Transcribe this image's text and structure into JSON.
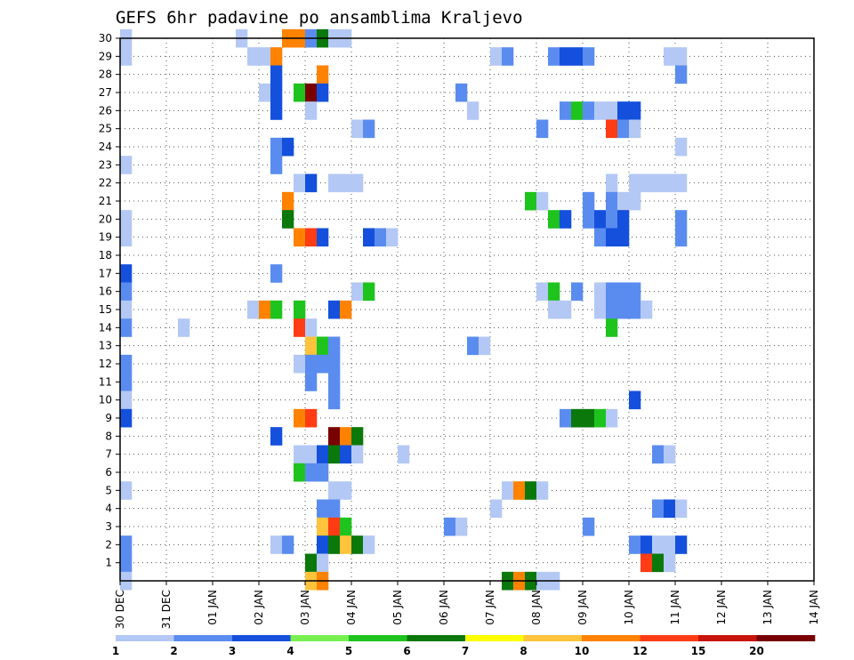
{
  "chart_data": {
    "type": "heatmap",
    "title": "GEFS 6hr padavine po ansamblima Kraljevo",
    "x_tick_labels": [
      "30 DEC",
      "31 DEC",
      "01 JAN",
      "02 JAN",
      "03 JAN",
      "04 JAN",
      "05 JAN",
      "06 JAN",
      "07 JAN",
      "08 JAN",
      "09 JAN",
      "10 JAN",
      "11 JAN",
      "12 JAN",
      "13 JAN",
      "14 JAN"
    ],
    "y_tick_labels": [
      "1",
      "2",
      "3",
      "4",
      "5",
      "6",
      "7",
      "8",
      "9",
      "10",
      "11",
      "12",
      "13",
      "14",
      "15",
      "16",
      "17",
      "18",
      "19",
      "20",
      "21",
      "22",
      "23",
      "24",
      "25",
      "26",
      "27",
      "28",
      "29",
      "30"
    ],
    "xlim": [
      0,
      15
    ],
    "ylim": [
      0,
      30
    ],
    "steps_per_day": 4,
    "grid": true,
    "colorbar": {
      "levels": [
        "1",
        "2",
        "3",
        "4",
        "5",
        "6",
        "7",
        "8",
        "10",
        "12",
        "15",
        "20"
      ],
      "colors": [
        "#b4c8f5",
        "#5a8cf0",
        "#1450dc",
        "#78f050",
        "#1ec31e",
        "#0a780a",
        "#ffff00",
        "#ffc33c",
        "#ff8200",
        "#ff3c14",
        "#c8140a",
        "#780000"
      ]
    },
    "cells": [
      [
        0,
        30,
        1
      ],
      [
        0,
        29,
        1
      ],
      [
        0,
        23,
        1
      ],
      [
        0,
        20,
        1
      ],
      [
        0,
        19,
        1
      ],
      [
        0,
        17,
        3
      ],
      [
        0,
        16,
        2
      ],
      [
        0,
        15,
        1
      ],
      [
        0,
        14,
        2
      ],
      [
        0,
        12,
        2
      ],
      [
        0,
        11,
        2
      ],
      [
        0,
        10,
        1
      ],
      [
        0,
        9,
        3
      ],
      [
        0,
        5,
        1
      ],
      [
        0,
        2,
        2
      ],
      [
        0,
        1,
        2
      ],
      [
        0,
        0,
        1
      ],
      [
        5,
        14,
        1
      ],
      [
        10,
        30,
        1
      ],
      [
        11,
        29,
        1
      ],
      [
        11,
        15,
        1
      ],
      [
        12,
        29,
        1
      ],
      [
        12,
        27,
        1
      ],
      [
        12,
        15,
        10
      ],
      [
        13,
        29,
        10
      ],
      [
        13,
        28,
        3
      ],
      [
        13,
        27,
        3
      ],
      [
        13,
        26,
        3
      ],
      [
        13,
        24,
        2
      ],
      [
        13,
        23,
        2
      ],
      [
        13,
        17,
        2
      ],
      [
        13,
        15,
        5
      ],
      [
        13,
        8,
        3
      ],
      [
        13,
        2,
        1
      ],
      [
        14,
        30,
        10
      ],
      [
        14,
        24,
        3
      ],
      [
        14,
        21,
        10
      ],
      [
        14,
        20,
        6
      ],
      [
        14,
        2,
        2
      ],
      [
        15,
        30,
        10
      ],
      [
        15,
        27,
        5
      ],
      [
        15,
        22,
        1
      ],
      [
        15,
        19,
        10
      ],
      [
        15,
        15,
        5
      ],
      [
        15,
        14,
        12
      ],
      [
        15,
        12,
        1
      ],
      [
        15,
        9,
        10
      ],
      [
        15,
        7,
        1
      ],
      [
        15,
        6,
        5
      ],
      [
        16,
        30,
        2
      ],
      [
        16,
        27,
        20
      ],
      [
        16,
        26,
        1
      ],
      [
        16,
        22,
        3
      ],
      [
        16,
        19,
        12
      ],
      [
        16,
        14,
        1
      ],
      [
        16,
        13,
        8
      ],
      [
        16,
        12,
        2
      ],
      [
        16,
        11,
        2
      ],
      [
        16,
        9,
        12
      ],
      [
        16,
        7,
        1
      ],
      [
        16,
        6,
        2
      ],
      [
        16,
        1,
        6
      ],
      [
        16,
        0,
        8
      ],
      [
        17,
        30,
        6
      ],
      [
        17,
        28,
        10
      ],
      [
        17,
        27,
        3
      ],
      [
        17,
        19,
        3
      ],
      [
        17,
        13,
        5
      ],
      [
        17,
        12,
        2
      ],
      [
        17,
        7,
        3
      ],
      [
        17,
        6,
        2
      ],
      [
        17,
        4,
        2
      ],
      [
        17,
        3,
        8
      ],
      [
        17,
        2,
        3
      ],
      [
        17,
        1,
        1
      ],
      [
        17,
        0,
        10
      ],
      [
        18,
        30,
        1
      ],
      [
        18,
        22,
        1
      ],
      [
        18,
        15,
        3
      ],
      [
        18,
        13,
        2
      ],
      [
        18,
        12,
        2
      ],
      [
        18,
        11,
        2
      ],
      [
        18,
        10,
        2
      ],
      [
        18,
        8,
        20
      ],
      [
        18,
        7,
        6
      ],
      [
        18,
        5,
        1
      ],
      [
        18,
        4,
        2
      ],
      [
        18,
        3,
        12
      ],
      [
        18,
        2,
        6
      ],
      [
        19,
        30,
        1
      ],
      [
        19,
        22,
        1
      ],
      [
        19,
        15,
        10
      ],
      [
        19,
        8,
        10
      ],
      [
        19,
        7,
        3
      ],
      [
        19,
        5,
        1
      ],
      [
        19,
        3,
        5
      ],
      [
        19,
        2,
        8
      ],
      [
        20,
        22,
        1
      ],
      [
        20,
        25,
        1
      ],
      [
        20,
        16,
        1
      ],
      [
        20,
        8,
        6
      ],
      [
        20,
        7,
        1
      ],
      [
        20,
        2,
        6
      ],
      [
        21,
        25,
        2
      ],
      [
        21,
        19,
        3
      ],
      [
        21,
        16,
        5
      ],
      [
        21,
        2,
        1
      ],
      [
        22,
        19,
        2
      ],
      [
        23,
        19,
        1
      ],
      [
        24,
        7,
        1
      ],
      [
        28,
        3,
        2
      ],
      [
        29,
        27,
        2
      ],
      [
        29,
        3,
        1
      ],
      [
        30,
        26,
        1
      ],
      [
        30,
        13,
        2
      ],
      [
        31,
        13,
        1
      ],
      [
        32,
        29,
        1
      ],
      [
        32,
        4,
        1
      ],
      [
        33,
        29,
        2
      ],
      [
        33,
        5,
        1
      ],
      [
        33,
        0,
        6
      ],
      [
        34,
        5,
        10
      ],
      [
        34,
        0,
        10
      ],
      [
        35,
        21,
        5
      ],
      [
        35,
        5,
        6
      ],
      [
        35,
        0,
        6
      ],
      [
        36,
        25,
        2
      ],
      [
        36,
        16,
        1
      ],
      [
        36,
        21,
        1
      ],
      [
        36,
        5,
        1
      ],
      [
        36,
        0,
        1
      ],
      [
        37,
        29,
        2
      ],
      [
        37,
        20,
        5
      ],
      [
        37,
        16,
        5
      ],
      [
        37,
        15,
        1
      ],
      [
        37,
        0,
        1
      ],
      [
        38,
        29,
        3
      ],
      [
        38,
        26,
        2
      ],
      [
        38,
        20,
        3
      ],
      [
        38,
        15,
        1
      ],
      [
        38,
        9,
        2
      ],
      [
        39,
        29,
        3
      ],
      [
        39,
        26,
        5
      ],
      [
        39,
        16,
        2
      ],
      [
        39,
        9,
        6
      ],
      [
        40,
        29,
        2
      ],
      [
        40,
        26,
        2
      ],
      [
        40,
        20,
        2
      ],
      [
        40,
        21,
        2
      ],
      [
        40,
        9,
        6
      ],
      [
        40,
        3,
        2
      ],
      [
        41,
        26,
        1
      ],
      [
        41,
        20,
        3
      ],
      [
        41,
        19,
        2
      ],
      [
        41,
        16,
        1
      ],
      [
        41,
        15,
        1
      ],
      [
        41,
        9,
        5
      ],
      [
        42,
        26,
        1
      ],
      [
        42,
        25,
        12
      ],
      [
        42,
        22,
        1
      ],
      [
        42,
        21,
        2
      ],
      [
        42,
        20,
        2
      ],
      [
        42,
        19,
        3
      ],
      [
        42,
        16,
        2
      ],
      [
        42,
        15,
        2
      ],
      [
        42,
        14,
        5
      ],
      [
        42,
        9,
        1
      ],
      [
        43,
        26,
        3
      ],
      [
        43,
        25,
        2
      ],
      [
        43,
        21,
        1
      ],
      [
        43,
        20,
        3
      ],
      [
        43,
        19,
        3
      ],
      [
        43,
        16,
        2
      ],
      [
        43,
        15,
        2
      ],
      [
        44,
        26,
        3
      ],
      [
        44,
        25,
        1
      ],
      [
        44,
        22,
        1
      ],
      [
        44,
        21,
        1
      ],
      [
        44,
        16,
        2
      ],
      [
        44,
        15,
        2
      ],
      [
        44,
        10,
        3
      ],
      [
        44,
        2,
        2
      ],
      [
        45,
        22,
        1
      ],
      [
        45,
        15,
        1
      ],
      [
        45,
        2,
        3
      ],
      [
        45,
        1,
        12
      ],
      [
        46,
        22,
        1
      ],
      [
        46,
        7,
        2
      ],
      [
        46,
        4,
        2
      ],
      [
        46,
        2,
        1
      ],
      [
        46,
        1,
        6
      ],
      [
        47,
        29,
        1
      ],
      [
        47,
        22,
        1
      ],
      [
        47,
        7,
        1
      ],
      [
        47,
        4,
        3
      ],
      [
        47,
        2,
        1
      ],
      [
        47,
        1,
        1
      ],
      [
        48,
        29,
        1
      ],
      [
        48,
        28,
        2
      ],
      [
        48,
        24,
        1
      ],
      [
        48,
        22,
        1
      ],
      [
        48,
        20,
        2
      ],
      [
        48,
        19,
        2
      ],
      [
        48,
        4,
        1
      ],
      [
        48,
        2,
        3
      ]
    ]
  }
}
